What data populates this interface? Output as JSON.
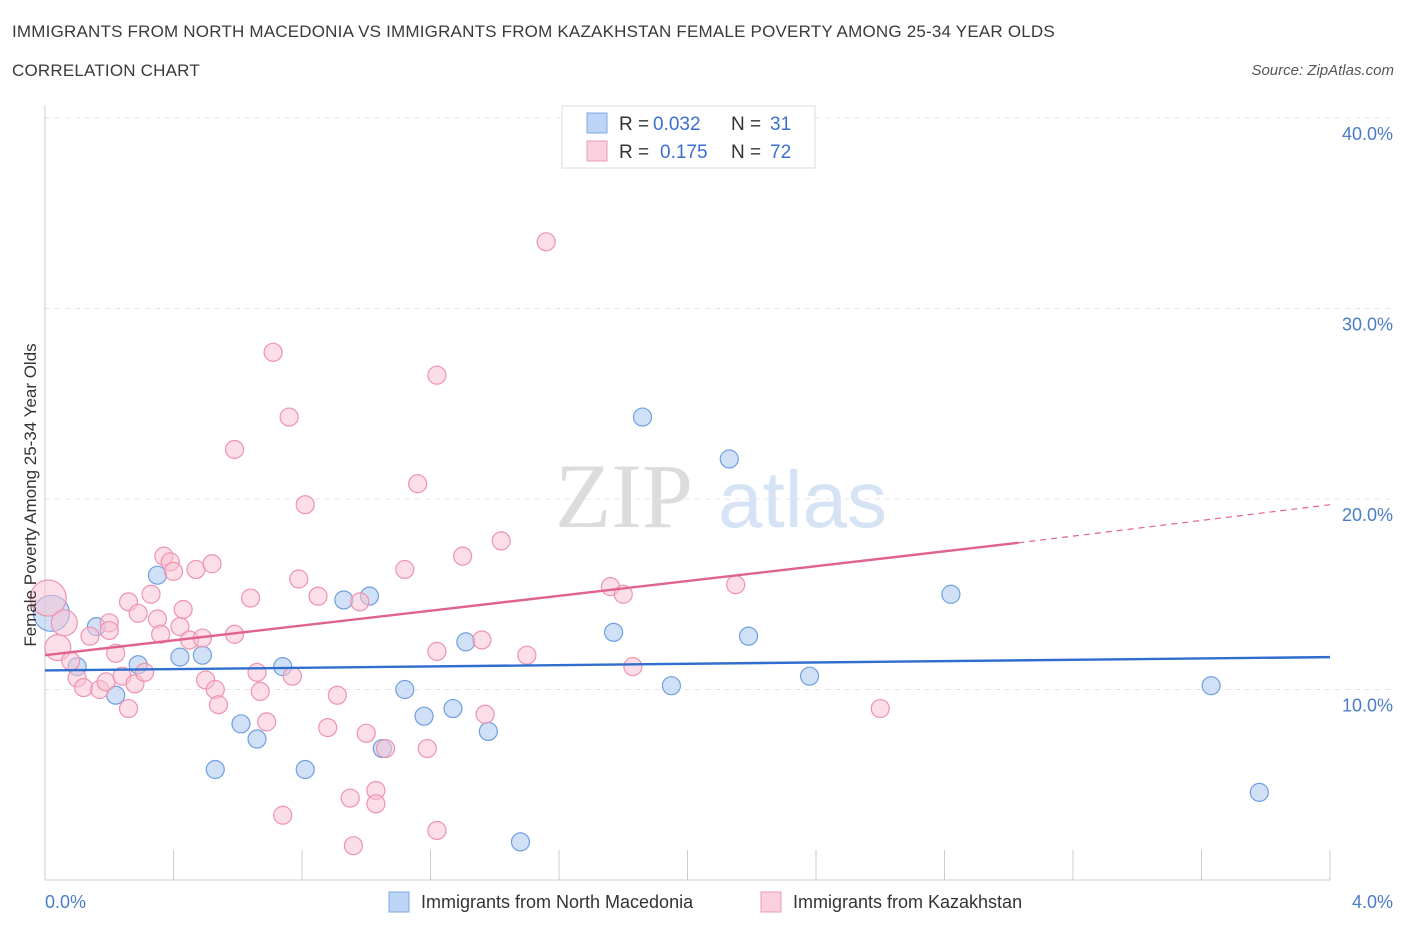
{
  "title": "IMMIGRANTS FROM NORTH MACEDONIA VS IMMIGRANTS FROM KAZAKHSTAN FEMALE POVERTY AMONG 25-34 YEAR OLDS",
  "subtitle": "CORRELATION CHART",
  "source": "Source: ZipAtlas.com",
  "watermark": {
    "zip": "ZIP",
    "atlas": "atlas"
  },
  "legend": {
    "r_label": "R =",
    "n_label": "N =",
    "series_a": {
      "r": "0.032",
      "n": "31"
    },
    "series_b": {
      "r": "0.175",
      "n": "72"
    }
  },
  "chart_data": {
    "type": "scatter",
    "title": "IMMIGRANTS FROM NORTH MACEDONIA VS IMMIGRANTS FROM KAZAKHSTAN FEMALE POVERTY AMONG 25-34 YEAR OLDS",
    "xlabel": "",
    "ylabel": "Female Poverty Among 25-34 Year Olds",
    "xlim": [
      0,
      4
    ],
    "ylim": [
      0,
      40
    ],
    "x_tick_labels": [
      "0.0%",
      "4.0%"
    ],
    "y_ticks": [
      10,
      20,
      30,
      40
    ],
    "y_tick_labels": [
      "10.0%",
      "20.0%",
      "30.0%",
      "40.0%"
    ],
    "grid": true,
    "legend_position": "top-center",
    "series": [
      {
        "name": "Immigrants from North Macedonia",
        "color": "#a9c8f0",
        "stroke": "#6f9fe0",
        "line_color": "#2f6ecf",
        "r": 0.032,
        "n": 31,
        "trend": {
          "x0": 0,
          "y0": 11.0,
          "x1": 4,
          "y1": 11.7
        },
        "points": [
          [
            0.02,
            14.0,
            "big"
          ],
          [
            0.1,
            11.2
          ],
          [
            0.16,
            13.3
          ],
          [
            0.22,
            9.7
          ],
          [
            0.29,
            11.3
          ],
          [
            0.35,
            16.0
          ],
          [
            0.42,
            11.7
          ],
          [
            0.49,
            11.8
          ],
          [
            0.53,
            5.8
          ],
          [
            0.61,
            8.2
          ],
          [
            0.66,
            7.4
          ],
          [
            0.74,
            11.2
          ],
          [
            0.81,
            5.8
          ],
          [
            0.93,
            14.7
          ],
          [
            1.01,
            14.9
          ],
          [
            1.05,
            6.9
          ],
          [
            1.12,
            10.0
          ],
          [
            1.18,
            8.6
          ],
          [
            1.27,
            9.0
          ],
          [
            1.31,
            12.5
          ],
          [
            1.38,
            7.8
          ],
          [
            1.48,
            2.0
          ],
          [
            1.77,
            13.0
          ],
          [
            1.86,
            24.3
          ],
          [
            1.95,
            10.2
          ],
          [
            2.13,
            22.1
          ],
          [
            2.19,
            12.8
          ],
          [
            2.38,
            10.7
          ],
          [
            2.82,
            15.0
          ],
          [
            3.63,
            10.2
          ],
          [
            3.78,
            4.6
          ]
        ]
      },
      {
        "name": "Immigrants from Kazakhstan",
        "color": "#f8c3d3",
        "stroke": "#ee93b0",
        "line_color": "#e0628f",
        "r": 0.175,
        "n": 72,
        "trend": {
          "x0": 0,
          "y0": 11.8,
          "x1": 3.03,
          "y1": 17.7
        },
        "trend_dashed": {
          "x0": 3.03,
          "y0": 17.7,
          "x1": 4,
          "y1": 19.7
        },
        "points": [
          [
            0.01,
            14.8,
            "big"
          ],
          [
            0.04,
            12.2,
            "mid"
          ],
          [
            0.06,
            13.5,
            "mid"
          ],
          [
            0.08,
            11.5
          ],
          [
            0.1,
            10.6
          ],
          [
            0.12,
            10.1
          ],
          [
            0.14,
            12.8
          ],
          [
            0.17,
            10.0
          ],
          [
            0.19,
            10.4
          ],
          [
            0.2,
            13.5
          ],
          [
            0.22,
            11.9
          ],
          [
            0.24,
            10.7
          ],
          [
            0.26,
            9.0
          ],
          [
            0.28,
            10.3
          ],
          [
            0.26,
            14.6
          ],
          [
            0.29,
            14.0
          ],
          [
            0.31,
            10.9
          ],
          [
            0.33,
            15.0
          ],
          [
            0.35,
            13.7
          ],
          [
            0.36,
            12.9
          ],
          [
            0.37,
            17.0
          ],
          [
            0.39,
            16.7
          ],
          [
            0.4,
            16.2
          ],
          [
            0.42,
            13.3
          ],
          [
            0.43,
            14.2
          ],
          [
            0.45,
            12.6
          ],
          [
            0.47,
            16.3
          ],
          [
            0.49,
            12.7
          ],
          [
            0.5,
            10.5
          ],
          [
            0.52,
            16.6
          ],
          [
            0.53,
            10.0
          ],
          [
            0.54,
            9.2
          ],
          [
            0.59,
            22.6
          ],
          [
            0.59,
            12.9
          ],
          [
            0.64,
            14.8
          ],
          [
            0.66,
            10.9
          ],
          [
            0.67,
            9.9
          ],
          [
            0.69,
            8.3
          ],
          [
            0.71,
            27.7
          ],
          [
            0.74,
            3.4
          ],
          [
            0.76,
            24.3
          ],
          [
            0.77,
            10.7
          ],
          [
            0.79,
            15.8
          ],
          [
            0.81,
            19.7
          ],
          [
            0.85,
            14.9
          ],
          [
            0.88,
            8.0
          ],
          [
            0.91,
            9.7
          ],
          [
            0.95,
            4.3
          ],
          [
            0.96,
            1.8
          ],
          [
            0.98,
            14.6
          ],
          [
            1.0,
            7.7
          ],
          [
            1.03,
            4.7
          ],
          [
            1.03,
            4.0
          ],
          [
            1.06,
            6.9
          ],
          [
            1.12,
            16.3
          ],
          [
            1.16,
            20.8
          ],
          [
            1.19,
            6.9
          ],
          [
            1.22,
            2.6
          ],
          [
            1.22,
            26.5
          ],
          [
            1.3,
            17.0
          ],
          [
            1.36,
            12.6
          ],
          [
            1.37,
            8.7
          ],
          [
            1.42,
            17.8
          ],
          [
            1.5,
            11.8
          ],
          [
            1.56,
            33.5
          ],
          [
            1.76,
            15.4
          ],
          [
            1.8,
            15.0
          ],
          [
            1.83,
            11.2
          ],
          [
            2.15,
            15.5
          ],
          [
            2.6,
            9.0
          ],
          [
            1.22,
            12.0
          ],
          [
            0.2,
            13.1
          ]
        ]
      }
    ]
  }
}
